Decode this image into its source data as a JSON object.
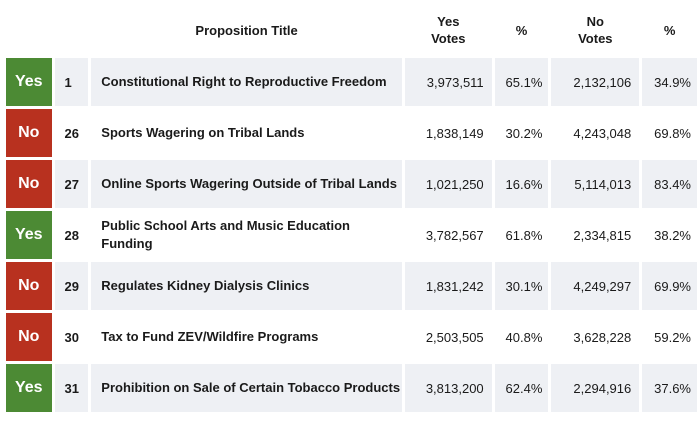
{
  "headers": {
    "title": "Proposition Title",
    "yes_votes": "Yes Votes",
    "yes_pct": "%",
    "no_votes": "No Votes",
    "no_pct": "%"
  },
  "rows": [
    {
      "result": "Yes",
      "number": "1",
      "title": "Constitutional Right to Reproductive Freedom",
      "yes_votes": "3,973,511",
      "yes_pct": "65.1%",
      "no_votes": "2,132,106",
      "no_pct": "34.9%"
    },
    {
      "result": "No",
      "number": "26",
      "title": "Sports Wagering on Tribal Lands",
      "yes_votes": "1,838,149",
      "yes_pct": "30.2%",
      "no_votes": "4,243,048",
      "no_pct": "69.8%"
    },
    {
      "result": "No",
      "number": "27",
      "title": "Online Sports Wagering Outside of Tribal Lands",
      "yes_votes": "1,021,250",
      "yes_pct": "16.6%",
      "no_votes": "5,114,013",
      "no_pct": "83.4%"
    },
    {
      "result": "Yes",
      "number": "28",
      "title": "Public School Arts and Music Education Funding",
      "yes_votes": "3,782,567",
      "yes_pct": "61.8%",
      "no_votes": "2,334,815",
      "no_pct": "38.2%"
    },
    {
      "result": "No",
      "number": "29",
      "title": "Regulates Kidney Dialysis Clinics",
      "yes_votes": "1,831,242",
      "yes_pct": "30.1%",
      "no_votes": "4,249,297",
      "no_pct": "69.9%"
    },
    {
      "result": "No",
      "number": "30",
      "title": "Tax to Fund ZEV/Wildfire Programs",
      "yes_votes": "2,503,505",
      "yes_pct": "40.8%",
      "no_votes": "3,628,228",
      "no_pct": "59.2%"
    },
    {
      "result": "Yes",
      "number": "31",
      "title": "Prohibition on Sale of Certain Tobacco Products",
      "yes_votes": "3,813,200",
      "yes_pct": "62.4%",
      "no_votes": "2,294,916",
      "no_pct": "37.6%"
    }
  ],
  "colors": {
    "yes": "#4c8a34",
    "no": "#b8311f",
    "row_shade": "#eef0f4"
  }
}
